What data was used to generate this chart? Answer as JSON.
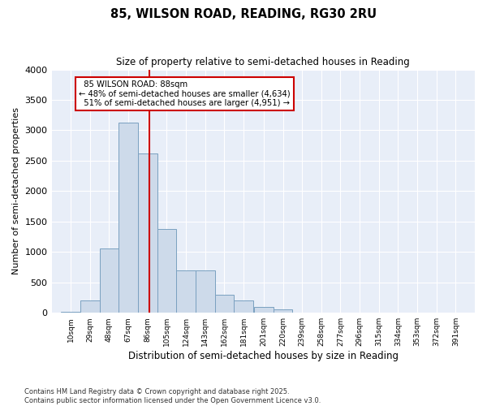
{
  "title": "85, WILSON ROAD, READING, RG30 2RU",
  "subtitle": "Size of property relative to semi-detached houses in Reading",
  "xlabel": "Distribution of semi-detached houses by size in Reading",
  "ylabel": "Number of semi-detached properties",
  "bar_color": "#cddaea",
  "bar_edge_color": "#7aa0c0",
  "background_color": "#e8eef8",
  "property_size": 88,
  "property_label": "85 WILSON ROAD: 88sqm",
  "pct_smaller": 48,
  "count_smaller": 4634,
  "pct_larger": 51,
  "count_larger": 4951,
  "vline_color": "#cc0000",
  "annotation_box_color": "#cc0000",
  "categories": [
    "10sqm",
    "29sqm",
    "48sqm",
    "67sqm",
    "86sqm",
    "105sqm",
    "124sqm",
    "143sqm",
    "162sqm",
    "181sqm",
    "201sqm",
    "220sqm",
    "239sqm",
    "258sqm",
    "277sqm",
    "296sqm",
    "315sqm",
    "334sqm",
    "353sqm",
    "372sqm",
    "391sqm"
  ],
  "values": [
    20,
    200,
    1060,
    3130,
    2620,
    1380,
    700,
    700,
    300,
    200,
    100,
    60,
    0,
    0,
    0,
    0,
    0,
    0,
    0,
    0,
    0
  ],
  "bin_centers": [
    10,
    29,
    48,
    67,
    86,
    105,
    124,
    143,
    162,
    181,
    201,
    220,
    239,
    258,
    277,
    296,
    315,
    334,
    353,
    372,
    391
  ],
  "bin_width": 19,
  "ylim": [
    0,
    4000
  ],
  "yticks": [
    0,
    500,
    1000,
    1500,
    2000,
    2500,
    3000,
    3500,
    4000
  ],
  "footnote": "Contains HM Land Registry data © Crown copyright and database right 2025.\nContains public sector information licensed under the Open Government Licence v3.0."
}
